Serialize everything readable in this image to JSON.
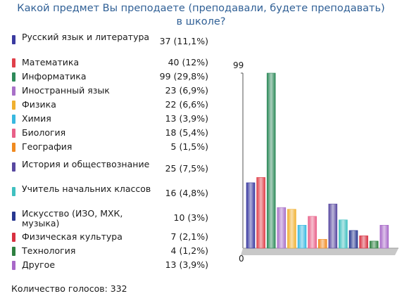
{
  "title": "Какой предмет Вы преподаете (преподавали, будете преподавать) в школе?",
  "footer": "Количество голосов: 332",
  "chart_data": {
    "type": "bar",
    "title": "Какой предмет Вы преподаете (преподавали, будете преподавать) в школе?",
    "total_votes": 332,
    "ylim": [
      0,
      99
    ],
    "yticks": [
      "99",
      "0"
    ],
    "grid": false,
    "legend": "left",
    "categories": [
      "Русский язык и литература",
      "Математика",
      "Информатика",
      "Иностранный язык",
      "Физика",
      "Химия",
      "Биология",
      "География",
      "История и обществознание",
      "Учитель начальних классов",
      "Искусство (ИЗО, МХК, музыка)",
      "Физическая культура",
      "Технология",
      "Другое"
    ],
    "values": [
      37,
      40,
      99,
      23,
      22,
      13,
      18,
      5,
      25,
      16,
      10,
      7,
      4,
      13
    ],
    "value_labels": [
      "37 (11,1%)",
      "40 (12%)",
      "99 (29,8%)",
      "23 (6,9%)",
      "22 (6,6%)",
      "13 (3,9%)",
      "18 (5,4%)",
      " 5 (1,5%)",
      "25 (7,5%)",
      "16 (4,8%)",
      "10 (3%)",
      " 7 (2,1%)",
      " 4 (1,2%)",
      "13 (3,9%)"
    ],
    "colors": [
      "#3a3aa0",
      "#e0404a",
      "#2e8a5a",
      "#a870c8",
      "#f0b030",
      "#38b8e0",
      "#e86088",
      "#f08a20",
      "#5848a0",
      "#40c0c0",
      "#283890",
      "#d83040",
      "#2e8040",
      "#a868c8"
    ]
  }
}
